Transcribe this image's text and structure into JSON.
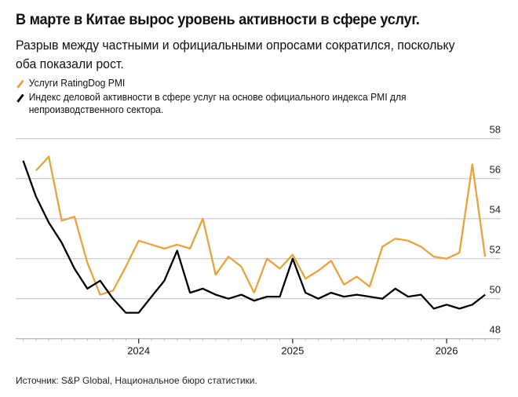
{
  "title": "В марте в Китае вырос уровень активности в сфере услуг.",
  "subtitle": "Разрыв между частными и официальными опросами сократился, поскольку оба показали рост.",
  "legend": [
    {
      "label": "Услуги RatingDog PMI",
      "color": "#e8a33c"
    },
    {
      "label": "Индекс деловой активности в сфере услуг на основе официального индекса PMI для непроизводственного сектора.",
      "color": "#000000"
    }
  ],
  "source": "Источник: S&P Global, Национальное бюро статистики.",
  "chart_data": {
    "type": "line",
    "x": [
      "2023-04",
      "2023-05",
      "2023-06",
      "2023-07",
      "2023-08",
      "2023-09",
      "2023-10",
      "2023-11",
      "2023-12",
      "2024-01",
      "2024-02",
      "2024-03",
      "2024-04",
      "2024-05",
      "2024-06",
      "2024-07",
      "2024-08",
      "2024-09",
      "2024-10",
      "2024-11",
      "2024-12",
      "2025-01",
      "2025-02",
      "2025-03",
      "2025-04",
      "2025-05",
      "2025-06",
      "2025-07",
      "2025-08",
      "2025-09",
      "2025-10",
      "2025-11",
      "2025-12",
      "2026-01",
      "2026-02",
      "2026-03",
      "2026-04"
    ],
    "series": [
      {
        "name": "Услуги RatingDog PMI",
        "color": "#e8a33c",
        "values": [
          null,
          56.4,
          57.1,
          53.9,
          54.1,
          51.8,
          50.2,
          50.4,
          51.6,
          52.9,
          52.7,
          52.5,
          52.7,
          52.5,
          54.0,
          51.2,
          52.1,
          51.6,
          50.3,
          52.0,
          51.5,
          52.2,
          51.0,
          51.4,
          51.9,
          50.7,
          51.1,
          50.6,
          52.6,
          53.0,
          52.9,
          52.6,
          52.1,
          52.0,
          52.3,
          56.7,
          52.1
        ]
      },
      {
        "name": "Индекс деловой активности в сфере услуг на основе официального индекса PMI для непроизводственного сектора.",
        "color": "#000000",
        "values": [
          56.9,
          55.1,
          53.8,
          52.8,
          51.5,
          50.5,
          50.9,
          50.0,
          49.3,
          49.3,
          50.1,
          50.9,
          52.4,
          50.3,
          50.5,
          50.2,
          50.0,
          50.2,
          49.9,
          50.1,
          50.1,
          52.0,
          50.3,
          50.0,
          50.3,
          50.1,
          50.2,
          50.1,
          50.0,
          50.5,
          50.1,
          50.2,
          49.5,
          49.7,
          49.5,
          49.7,
          50.2
        ]
      }
    ],
    "ylim": [
      48,
      58
    ],
    "yticks": [
      "48",
      "50",
      "52",
      "54",
      "56",
      "58"
    ],
    "xticks": [
      {
        "label": "2024",
        "at": "2024-01"
      },
      {
        "label": "2025",
        "at": "2025-01"
      },
      {
        "label": "2026",
        "at": "2026-01"
      }
    ],
    "y_axis_position": "right",
    "grid": true
  }
}
